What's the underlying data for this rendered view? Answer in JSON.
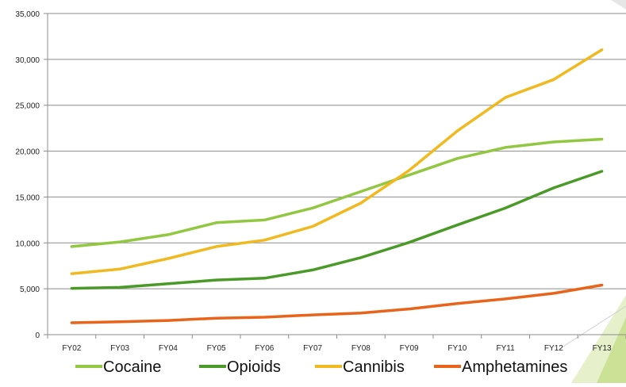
{
  "chart_data": {
    "type": "line",
    "categories": [
      "FY02",
      "FY03",
      "FY04",
      "FY05",
      "FY06",
      "FY07",
      "FY08",
      "FY09",
      "FY10",
      "FY11",
      "FY12",
      "FY13"
    ],
    "ylim": [
      0,
      35000
    ],
    "yticks": [
      0,
      5000,
      10000,
      15000,
      20000,
      25000,
      30000,
      35000
    ],
    "ytick_labels": [
      "0",
      "5,000",
      "10,000",
      "15,000",
      "20,000",
      "25,000",
      "30,000",
      "35,000"
    ],
    "grid": true,
    "legend_position": "bottom",
    "series": [
      {
        "name": "Cocaine",
        "color": "#92c741",
        "values": [
          9600,
          10100,
          10900,
          12200,
          12500,
          13800,
          15600,
          17400,
          19200,
          20400,
          21000,
          21300
        ]
      },
      {
        "name": "Opioids",
        "color": "#4a9a28",
        "values": [
          5050,
          5150,
          5550,
          5950,
          6150,
          7050,
          8400,
          10050,
          11950,
          13800,
          16000,
          17800
        ]
      },
      {
        "name": "Cannibis",
        "color": "#f0b920",
        "values": [
          6650,
          7150,
          8300,
          9600,
          10300,
          11800,
          14350,
          17900,
          22200,
          25850,
          27800,
          31050
        ]
      },
      {
        "name": "Amphetamines",
        "color": "#e8641b",
        "values": [
          1300,
          1400,
          1550,
          1800,
          1900,
          2150,
          2350,
          2800,
          3400,
          3900,
          4500,
          5400
        ]
      }
    ]
  }
}
